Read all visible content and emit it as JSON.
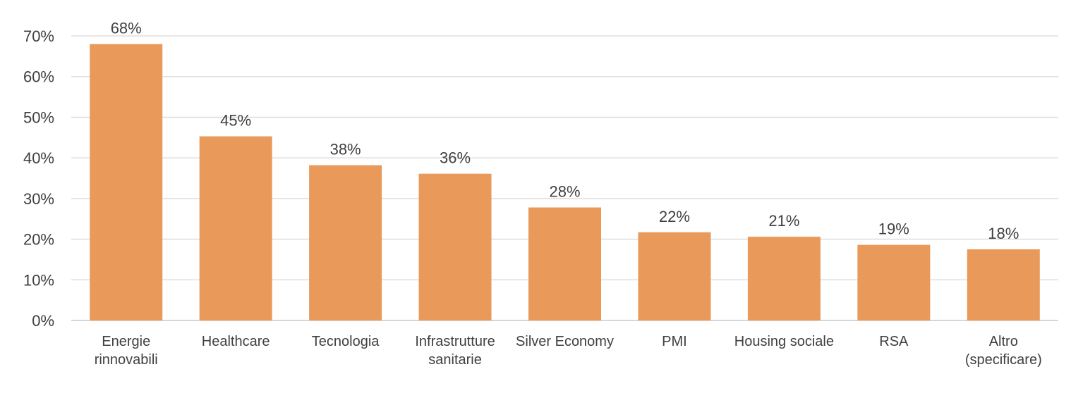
{
  "chart_data": {
    "type": "bar",
    "title": "",
    "xlabel": "",
    "ylabel": "",
    "categories": [
      [
        "Energie",
        "rinnovabili"
      ],
      [
        "Healthcare"
      ],
      [
        "Tecnologia"
      ],
      [
        "Infrastrutture",
        "sanitarie"
      ],
      [
        "Silver Economy"
      ],
      [
        "PMI"
      ],
      [
        "Housing sociale"
      ],
      [
        "RSA"
      ],
      [
        "Altro",
        "(specificare)"
      ]
    ],
    "values": [
      68,
      45.3,
      38.2,
      36.1,
      27.8,
      21.7,
      20.6,
      18.6,
      17.5
    ],
    "data_labels": [
      "68%",
      "45%",
      "38%",
      "36%",
      "28%",
      "22%",
      "21%",
      "19%",
      "18%"
    ],
    "yticks": [
      "0%",
      "10%",
      "20%",
      "30%",
      "40%",
      "50%",
      "60%",
      "70%"
    ],
    "ylim": [
      0,
      70
    ],
    "grid": true,
    "bar_color": "#E99A5A",
    "grid_color": "#D9D9D9",
    "text_color": "#404040"
  }
}
